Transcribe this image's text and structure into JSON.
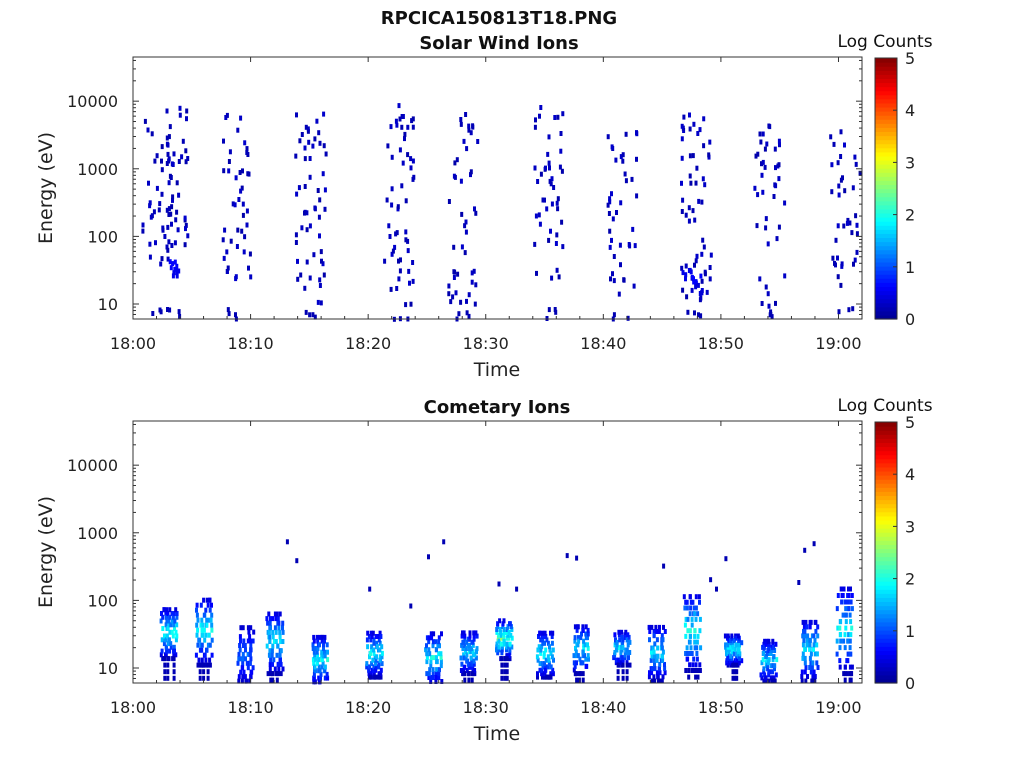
{
  "figure_title": "RPCICA150813T18.PNG",
  "colors": {
    "low": "#00008f",
    "colormap": [
      "#00008f",
      "#0000ff",
      "#0080ff",
      "#00ffff",
      "#80ff80",
      "#ffff00",
      "#ff8000",
      "#ff0000",
      "#800000"
    ]
  },
  "chart_data": [
    {
      "type": "heatmap",
      "title": "Solar Wind Ions",
      "xlabel": "Time",
      "ylabel": "Energy (eV)",
      "x_ticks": [
        "18:00",
        "18:10",
        "18:20",
        "18:30",
        "18:40",
        "18:50",
        "19:00"
      ],
      "x_tick_minutes": [
        0,
        10,
        20,
        30,
        40,
        50,
        60
      ],
      "xlim_minutes": [
        0,
        62
      ],
      "y_scale": "log",
      "y_ticks": [
        "10",
        "100",
        "1000",
        "10000"
      ],
      "y_tick_values": [
        10,
        100,
        1000,
        10000
      ],
      "ylim": [
        6,
        45000
      ],
      "colorbar": {
        "label": "Log Counts",
        "ticks": [
          "0",
          "1",
          "2",
          "3",
          "4",
          "5"
        ],
        "range": [
          0,
          5
        ]
      },
      "bursts": [
        {
          "t": 2.0,
          "e_high": 8000,
          "e_low": 25,
          "count": 40
        },
        {
          "t": 3.3,
          "e_high": 9000,
          "e_low": 25,
          "count": 40
        },
        {
          "t": 8.8,
          "e_high": 7000,
          "e_low": 20,
          "count": 45
        },
        {
          "t": 15.0,
          "e_high": 9000,
          "e_low": 10,
          "count": 55
        },
        {
          "t": 22.5,
          "e_high": 10000,
          "e_low": 10,
          "count": 55
        },
        {
          "t": 28.0,
          "e_high": 8000,
          "e_low": 10,
          "count": 45
        },
        {
          "t": 35.2,
          "e_high": 9000,
          "e_low": 25,
          "count": 45
        },
        {
          "t": 41.5,
          "e_high": 5000,
          "e_low": 15,
          "count": 40
        },
        {
          "t": 47.8,
          "e_high": 7000,
          "e_low": 12,
          "count": 55
        },
        {
          "t": 54.0,
          "e_high": 5000,
          "e_low": 10,
          "count": 40
        },
        {
          "t": 60.5,
          "e_high": 5000,
          "e_low": 20,
          "count": 40
        }
      ],
      "dense_cells": [
        {
          "t": 3.3,
          "e": 40,
          "v": 0.6
        },
        {
          "t": 3.5,
          "e": 32,
          "v": 0.5
        },
        {
          "t": 47.0,
          "e": 30,
          "v": 0.5
        },
        {
          "t": 47.8,
          "e": 25,
          "v": 0.6
        },
        {
          "t": 48.0,
          "e": 18,
          "v": 0.4
        }
      ]
    },
    {
      "type": "heatmap",
      "title": "Cometary Ions",
      "xlabel": "Time",
      "ylabel": "Energy (eV)",
      "x_ticks": [
        "18:00",
        "18:10",
        "18:20",
        "18:30",
        "18:40",
        "18:50",
        "19:00"
      ],
      "x_tick_minutes": [
        0,
        10,
        20,
        30,
        40,
        50,
        60
      ],
      "xlim_minutes": [
        0,
        62
      ],
      "y_scale": "log",
      "y_ticks": [
        "10",
        "100",
        "1000",
        "10000"
      ],
      "y_tick_values": [
        10,
        100,
        1000,
        10000
      ],
      "ylim": [
        6,
        45000
      ],
      "colorbar": {
        "label": "Log Counts",
        "ticks": [
          "0",
          "1",
          "2",
          "3",
          "4",
          "5"
        ],
        "range": [
          0,
          5
        ]
      },
      "bursts": [
        {
          "t": 3.0,
          "e_high": 90,
          "e_low": 15,
          "v": 1.9
        },
        {
          "t": 6.0,
          "e_high": 130,
          "e_low": 12,
          "v": 1.8
        },
        {
          "t": 9.5,
          "e_high": 50,
          "e_low": 6,
          "v": 1.0
        },
        {
          "t": 12.0,
          "e_high": 80,
          "e_low": 9,
          "v": 1.7
        },
        {
          "t": 15.8,
          "e_high": 35,
          "e_low": 6,
          "v": 1.8
        },
        {
          "t": 20.5,
          "e_high": 40,
          "e_low": 8,
          "v": 1.8
        },
        {
          "t": 25.5,
          "e_high": 40,
          "e_low": 6,
          "v": 1.8
        },
        {
          "t": 28.5,
          "e_high": 40,
          "e_low": 9,
          "v": 1.7
        },
        {
          "t": 31.5,
          "e_high": 60,
          "e_low": 15,
          "v": 2.2
        },
        {
          "t": 35.0,
          "e_high": 40,
          "e_low": 8,
          "v": 1.9
        },
        {
          "t": 38.0,
          "e_high": 50,
          "e_low": 9,
          "v": 1.8
        },
        {
          "t": 41.5,
          "e_high": 40,
          "e_low": 12,
          "v": 1.7
        },
        {
          "t": 44.5,
          "e_high": 50,
          "e_low": 7,
          "v": 1.6
        },
        {
          "t": 47.5,
          "e_high": 150,
          "e_low": 10,
          "v": 2.0
        },
        {
          "t": 51.0,
          "e_high": 35,
          "e_low": 12,
          "v": 1.8
        },
        {
          "t": 54.0,
          "e_high": 30,
          "e_low": 7,
          "v": 1.6
        },
        {
          "t": 57.5,
          "e_high": 60,
          "e_low": 7,
          "v": 1.8
        },
        {
          "t": 60.5,
          "e_high": 200,
          "e_low": 9,
          "v": 1.7
        }
      ],
      "scatter": [
        {
          "t": 13.0,
          "e": 800
        },
        {
          "t": 13.8,
          "e": 420
        },
        {
          "t": 25.0,
          "e": 480
        },
        {
          "t": 26.3,
          "e": 800
        },
        {
          "t": 36.8,
          "e": 500
        },
        {
          "t": 37.6,
          "e": 460
        },
        {
          "t": 45.0,
          "e": 350
        },
        {
          "t": 49.0,
          "e": 220
        },
        {
          "t": 49.5,
          "e": 160
        },
        {
          "t": 50.3,
          "e": 450
        },
        {
          "t": 56.5,
          "e": 200
        },
        {
          "t": 57.0,
          "e": 600
        },
        {
          "t": 57.8,
          "e": 750
        },
        {
          "t": 20.0,
          "e": 160
        },
        {
          "t": 23.5,
          "e": 90
        },
        {
          "t": 31.0,
          "e": 190
        },
        {
          "t": 32.5,
          "e": 160
        }
      ]
    }
  ]
}
